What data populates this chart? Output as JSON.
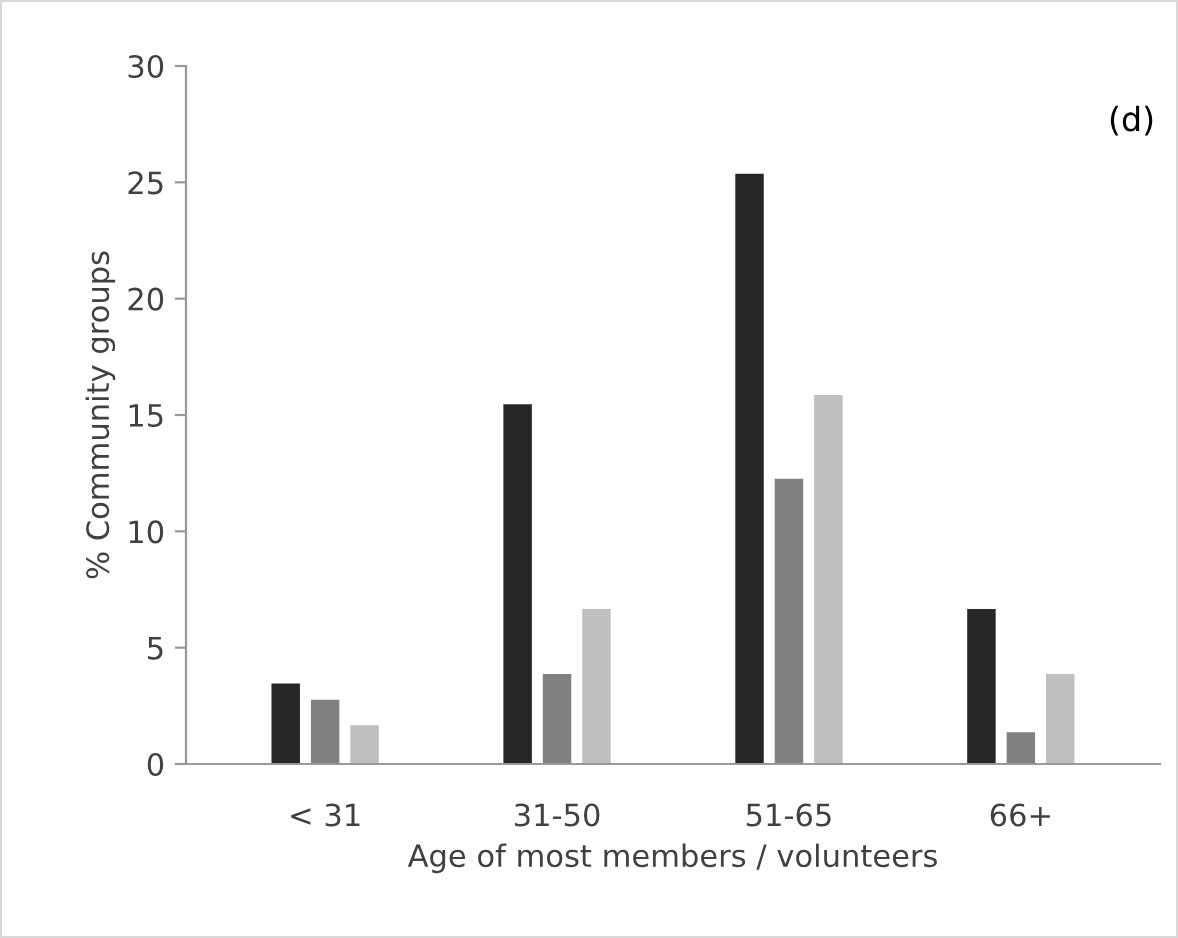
{
  "chart_data": {
    "type": "bar",
    "xlabel": "Age of most members / volunteers",
    "ylabel": "% Community groups",
    "categories": [
      "< 31",
      "31-50",
      "51-65",
      "66+"
    ],
    "series": [
      {
        "color": "#262626",
        "values": [
          3.5,
          15.5,
          25.4,
          6.7
        ]
      },
      {
        "color": "#808080",
        "values": [
          2.8,
          3.9,
          12.3,
          1.4
        ]
      },
      {
        "color": "#bfbfbf",
        "values": [
          1.7,
          6.7,
          15.9,
          3.9
        ]
      }
    ],
    "ylim": [
      0,
      30
    ],
    "yticks": [
      0,
      5,
      10,
      15,
      20,
      25,
      30
    ],
    "grid": false,
    "legend": false,
    "annotations": [
      "(d)"
    ]
  }
}
